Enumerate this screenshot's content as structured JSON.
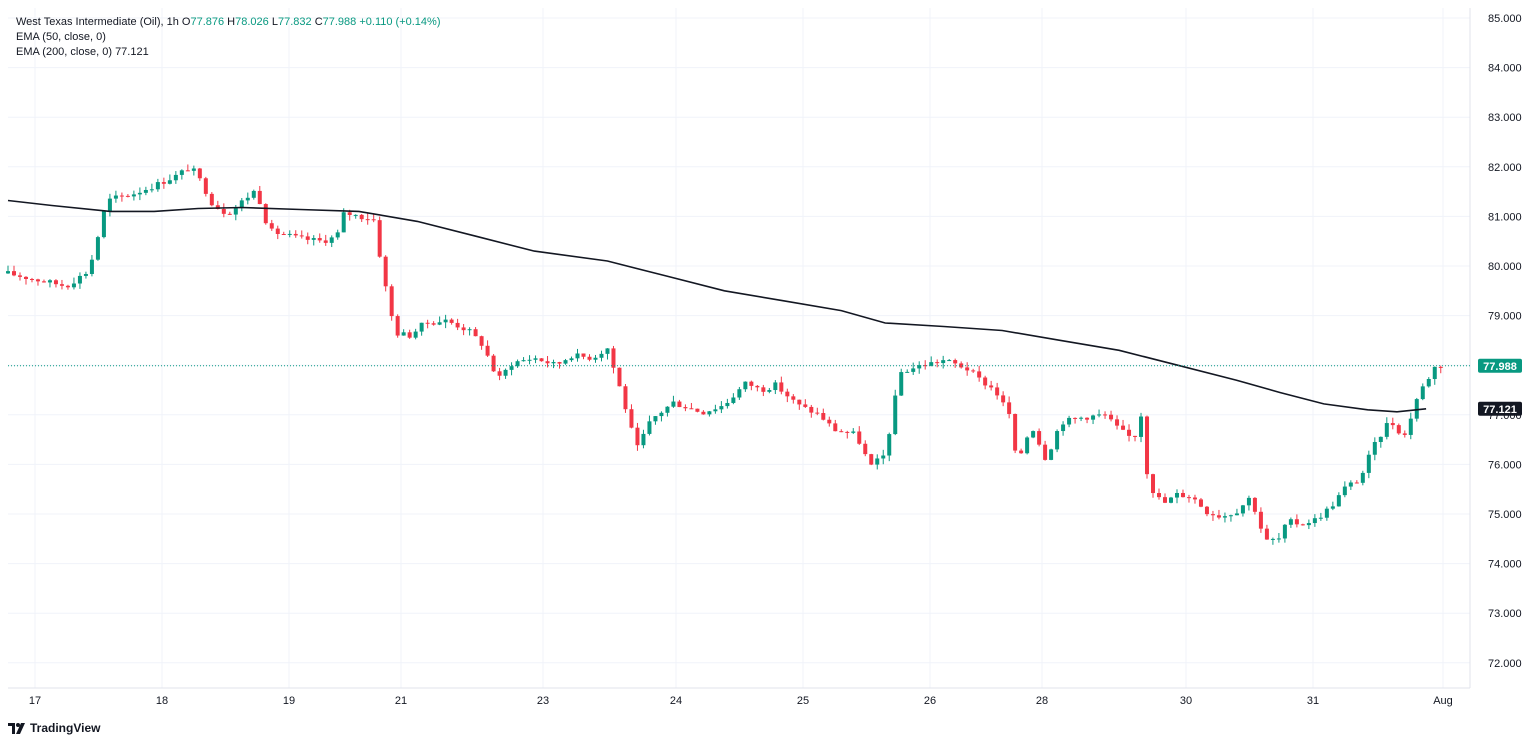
{
  "legend": {
    "title": "West Texas Intermediate (Oil), 1h",
    "open_label": "O",
    "open": "77.876",
    "high_label": "H",
    "high": "78.026",
    "low_label": "L",
    "low": "77.832",
    "close_label": "C",
    "close": "77.988",
    "change": "+0.110 (+0.14%)",
    "ema50": "EMA (50, close, 0)",
    "ema200": "EMA (200, close, 0)",
    "ema200_value": "77.121"
  },
  "brand": {
    "name": "TradingView",
    "icon": "tradingview-logo-icon"
  },
  "colors": {
    "up": "#089981",
    "down": "#f23645",
    "ema": "#131722",
    "grid": "#f0f3fa",
    "price_line": "#089981"
  },
  "chart_data": {
    "type": "candlestick",
    "symbol": "West Texas Intermediate (Oil)",
    "interval": "1h",
    "grid": true,
    "ylim": [
      71.6,
      85.2
    ],
    "y_ticks": [
      "85.000",
      "84.000",
      "83.000",
      "82.000",
      "81.000",
      "80.000",
      "79.000",
      "78.000",
      "77.000",
      "76.000",
      "75.000",
      "74.000",
      "73.000",
      "72.000"
    ],
    "x_ticks": [
      "17",
      "18",
      "19",
      "21",
      "23",
      "24",
      "25",
      "26",
      "28",
      "30",
      "31",
      "Aug"
    ],
    "last_price": "77.988",
    "ema200_last": "77.121",
    "ema200_path": [
      [
        0,
        81.32
      ],
      [
        0.03,
        81.22
      ],
      [
        0.07,
        81.1
      ],
      [
        0.1,
        81.1
      ],
      [
        0.13,
        81.16
      ],
      [
        0.16,
        81.18
      ],
      [
        0.2,
        81.14
      ],
      [
        0.24,
        81.1
      ],
      [
        0.28,
        80.9
      ],
      [
        0.32,
        80.6
      ],
      [
        0.36,
        80.3
      ],
      [
        0.41,
        80.1
      ],
      [
        0.45,
        79.8
      ],
      [
        0.49,
        79.5
      ],
      [
        0.53,
        79.3
      ],
      [
        0.57,
        79.1
      ],
      [
        0.6,
        78.85
      ],
      [
        0.64,
        78.78
      ],
      [
        0.68,
        78.7
      ],
      [
        0.72,
        78.5
      ],
      [
        0.76,
        78.3
      ],
      [
        0.8,
        78.0
      ],
      [
        0.84,
        77.7
      ],
      [
        0.87,
        77.45
      ],
      [
        0.9,
        77.22
      ],
      [
        0.93,
        77.1
      ],
      [
        0.95,
        77.06
      ],
      [
        0.97,
        77.12
      ]
    ],
    "close_path": [
      [
        0,
        79.85
      ],
      [
        0.02,
        79.72
      ],
      [
        0.04,
        79.6
      ],
      [
        0.055,
        79.9
      ],
      [
        0.06,
        80.4
      ],
      [
        0.065,
        81.05
      ],
      [
        0.07,
        81.35
      ],
      [
        0.085,
        81.45
      ],
      [
        0.1,
        81.62
      ],
      [
        0.115,
        81.82
      ],
      [
        0.125,
        82.0
      ],
      [
        0.132,
        81.7
      ],
      [
        0.14,
        81.25
      ],
      [
        0.15,
        81.05
      ],
      [
        0.16,
        81.3
      ],
      [
        0.17,
        81.55
      ],
      [
        0.175,
        81.0
      ],
      [
        0.18,
        80.7
      ],
      [
        0.2,
        80.55
      ],
      [
        0.215,
        80.5
      ],
      [
        0.225,
        80.6
      ],
      [
        0.23,
        81.08
      ],
      [
        0.24,
        81.0
      ],
      [
        0.25,
        80.95
      ],
      [
        0.255,
        80.1
      ],
      [
        0.26,
        79.3
      ],
      [
        0.265,
        78.65
      ],
      [
        0.275,
        78.6
      ],
      [
        0.285,
        78.85
      ],
      [
        0.3,
        78.9
      ],
      [
        0.315,
        78.7
      ],
      [
        0.325,
        78.4
      ],
      [
        0.335,
        77.7
      ],
      [
        0.345,
        78.05
      ],
      [
        0.36,
        78.15
      ],
      [
        0.375,
        78.0
      ],
      [
        0.385,
        78.2
      ],
      [
        0.4,
        78.15
      ],
      [
        0.41,
        78.35
      ],
      [
        0.42,
        77.4
      ],
      [
        0.43,
        76.3
      ],
      [
        0.44,
        76.9
      ],
      [
        0.455,
        77.25
      ],
      [
        0.475,
        77.05
      ],
      [
        0.49,
        77.2
      ],
      [
        0.505,
        77.65
      ],
      [
        0.515,
        77.5
      ],
      [
        0.525,
        77.6
      ],
      [
        0.54,
        77.2
      ],
      [
        0.555,
        77.0
      ],
      [
        0.565,
        76.7
      ],
      [
        0.58,
        76.6
      ],
      [
        0.59,
        75.95
      ],
      [
        0.6,
        76.2
      ],
      [
        0.61,
        77.85
      ],
      [
        0.625,
        78.0
      ],
      [
        0.64,
        78.1
      ],
      [
        0.655,
        77.95
      ],
      [
        0.665,
        77.7
      ],
      [
        0.675,
        77.5
      ],
      [
        0.685,
        77.0
      ],
      [
        0.69,
        76.0
      ],
      [
        0.7,
        76.8
      ],
      [
        0.71,
        76.1
      ],
      [
        0.72,
        76.85
      ],
      [
        0.735,
        76.95
      ],
      [
        0.75,
        77.0
      ],
      [
        0.76,
        76.7
      ],
      [
        0.77,
        76.5
      ],
      [
        0.775,
        77.0
      ],
      [
        0.78,
        75.6
      ],
      [
        0.79,
        75.2
      ],
      [
        0.8,
        75.4
      ],
      [
        0.81,
        75.35
      ],
      [
        0.82,
        75.05
      ],
      [
        0.83,
        74.95
      ],
      [
        0.84,
        75.05
      ],
      [
        0.85,
        75.35
      ],
      [
        0.855,
        74.9
      ],
      [
        0.86,
        74.45
      ],
      [
        0.87,
        74.5
      ],
      [
        0.875,
        74.85
      ],
      [
        0.885,
        74.8
      ],
      [
        0.895,
        74.9
      ],
      [
        0.905,
        75.15
      ],
      [
        0.915,
        75.55
      ],
      [
        0.925,
        75.7
      ],
      [
        0.93,
        76.1
      ],
      [
        0.935,
        76.4
      ],
      [
        0.945,
        76.9
      ],
      [
        0.955,
        76.55
      ],
      [
        0.96,
        77.0
      ],
      [
        0.965,
        77.45
      ],
      [
        0.97,
        77.65
      ],
      [
        0.975,
        77.95
      ],
      [
        0.98,
        77.988
      ]
    ],
    "candles": 240,
    "seed": 17
  }
}
